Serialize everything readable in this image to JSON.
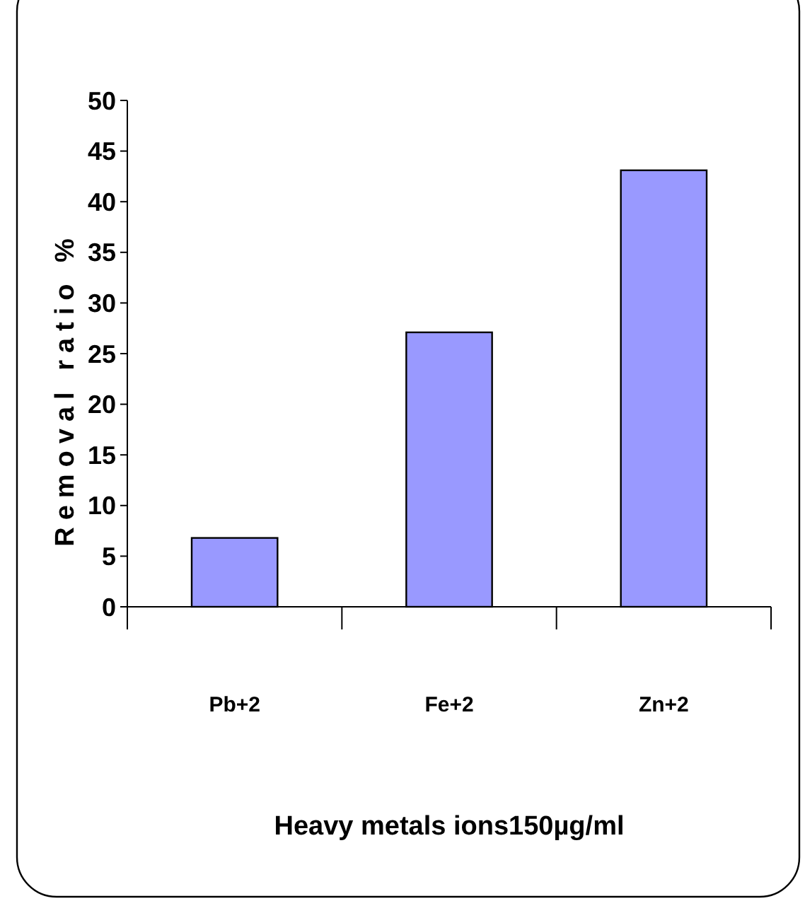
{
  "chart_data": {
    "type": "bar",
    "xlabel": "Heavy metals ions150µg/ml",
    "ylabel": "Removal ratio %",
    "categories": [
      "Pb+2",
      "Fe+2",
      "Zn+2"
    ],
    "values": [
      6.8,
      27.1,
      43.1
    ],
    "color": "#9999ff",
    "ylim": [
      0,
      50
    ],
    "yticks": [
      0,
      5,
      10,
      15,
      20,
      25,
      30,
      35,
      40,
      45,
      50
    ]
  }
}
